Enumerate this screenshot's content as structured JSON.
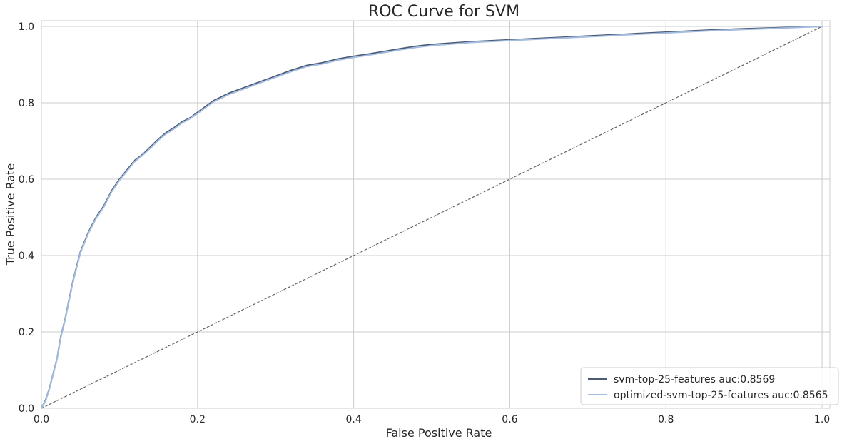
{
  "chart_data": {
    "type": "line",
    "title": "ROC Curve for SVM",
    "xlabel": "False Positive Rate",
    "ylabel": "True Positive Rate",
    "xlim": [
      0,
      1.0
    ],
    "ylim": [
      0,
      1.0
    ],
    "x_ticks": [
      "0.0",
      "0.2",
      "0.4",
      "0.6",
      "0.8",
      "1.0"
    ],
    "y_ticks": [
      "0.0",
      "0.2",
      "0.4",
      "0.6",
      "0.8",
      "1.0"
    ],
    "grid": true,
    "legend_position": "bottom-right",
    "series": [
      {
        "name": "svm-top-25-features auc:0.8569",
        "color": "#4c5a73",
        "x": [
          0,
          0.005,
          0.01,
          0.015,
          0.02,
          0.025,
          0.03,
          0.035,
          0.04,
          0.045,
          0.05,
          0.06,
          0.07,
          0.08,
          0.09,
          0.1,
          0.11,
          0.12,
          0.13,
          0.14,
          0.15,
          0.16,
          0.17,
          0.18,
          0.19,
          0.2,
          0.22,
          0.24,
          0.26,
          0.28,
          0.3,
          0.32,
          0.34,
          0.36,
          0.38,
          0.4,
          0.42,
          0.44,
          0.46,
          0.48,
          0.5,
          0.55,
          0.6,
          0.65,
          0.7,
          0.75,
          0.8,
          0.85,
          0.9,
          0.95,
          1.0
        ],
        "y": [
          0,
          0.02,
          0.05,
          0.09,
          0.13,
          0.19,
          0.23,
          0.28,
          0.33,
          0.37,
          0.41,
          0.46,
          0.5,
          0.53,
          0.57,
          0.6,
          0.625,
          0.65,
          0.665,
          0.685,
          0.705,
          0.722,
          0.735,
          0.75,
          0.76,
          0.775,
          0.805,
          0.825,
          0.84,
          0.855,
          0.87,
          0.885,
          0.898,
          0.905,
          0.915,
          0.922,
          0.928,
          0.935,
          0.942,
          0.948,
          0.953,
          0.96,
          0.965,
          0.97,
          0.975,
          0.98,
          0.985,
          0.99,
          0.994,
          0.997,
          1.0
        ]
      },
      {
        "name": "optimized-svm-top-25-features auc:0.8565",
        "color": "#a2bde0",
        "x": [
          0,
          0.005,
          0.01,
          0.015,
          0.02,
          0.025,
          0.03,
          0.035,
          0.04,
          0.045,
          0.05,
          0.06,
          0.07,
          0.08,
          0.09,
          0.1,
          0.11,
          0.12,
          0.13,
          0.14,
          0.15,
          0.16,
          0.17,
          0.18,
          0.19,
          0.2,
          0.22,
          0.24,
          0.26,
          0.28,
          0.3,
          0.32,
          0.34,
          0.36,
          0.38,
          0.4,
          0.42,
          0.44,
          0.46,
          0.48,
          0.5,
          0.55,
          0.6,
          0.65,
          0.7,
          0.75,
          0.8,
          0.85,
          0.9,
          0.95,
          1.0
        ],
        "y": [
          0,
          0.018,
          0.048,
          0.088,
          0.128,
          0.187,
          0.228,
          0.277,
          0.327,
          0.367,
          0.407,
          0.457,
          0.497,
          0.527,
          0.567,
          0.597,
          0.622,
          0.647,
          0.663,
          0.682,
          0.702,
          0.719,
          0.732,
          0.747,
          0.758,
          0.772,
          0.802,
          0.822,
          0.837,
          0.852,
          0.867,
          0.882,
          0.895,
          0.902,
          0.912,
          0.919,
          0.925,
          0.932,
          0.939,
          0.945,
          0.95,
          0.958,
          0.963,
          0.968,
          0.973,
          0.978,
          0.983,
          0.988,
          0.992,
          0.996,
          1.0
        ]
      }
    ],
    "reference_line": {
      "x": [
        0,
        1.0
      ],
      "y": [
        0,
        1.0
      ],
      "color": "#666666",
      "style": "dashed"
    }
  }
}
